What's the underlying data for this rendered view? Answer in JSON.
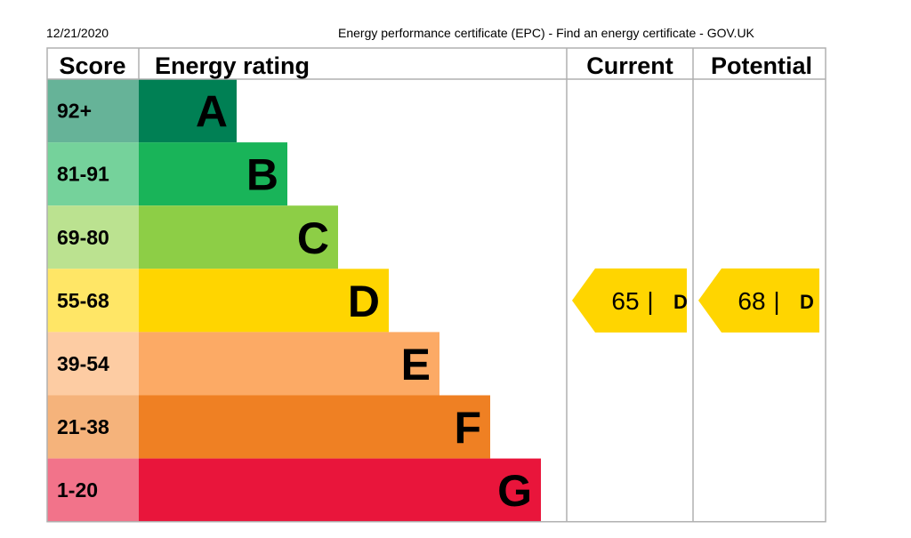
{
  "header": {
    "date": "12/21/2020",
    "title": "Energy performance certificate (EPC) - Find an energy certificate - GOV.UK"
  },
  "chart_data": {
    "type": "bar",
    "columns": {
      "score": "Score",
      "rating": "Energy rating",
      "current": "Current",
      "potential": "Potential"
    },
    "bands": [
      {
        "letter": "A",
        "score": "92+",
        "color": "#008054",
        "score_bg": "#66b398"
      },
      {
        "letter": "B",
        "score": "81-91",
        "color": "#19b459",
        "score_bg": "#75d29b"
      },
      {
        "letter": "C",
        "score": "69-80",
        "color": "#8dce46",
        "score_bg": "#bbe290"
      },
      {
        "letter": "D",
        "score": "55-68",
        "color": "#ffd500",
        "score_bg": "#ffe666"
      },
      {
        "letter": "E",
        "score": "39-54",
        "color": "#fcaa65",
        "score_bg": "#fdcca3"
      },
      {
        "letter": "F",
        "score": "21-38",
        "color": "#ef8023",
        "score_bg": "#f5b37b"
      },
      {
        "letter": "G",
        "score": "1-20",
        "color": "#e9153b",
        "score_bg": "#f2738a"
      }
    ],
    "current": {
      "value": 65,
      "separator": "|",
      "letter": "D",
      "color": "#ffd500"
    },
    "potential": {
      "value": 68,
      "separator": "|",
      "letter": "D",
      "color": "#ffd500"
    }
  }
}
